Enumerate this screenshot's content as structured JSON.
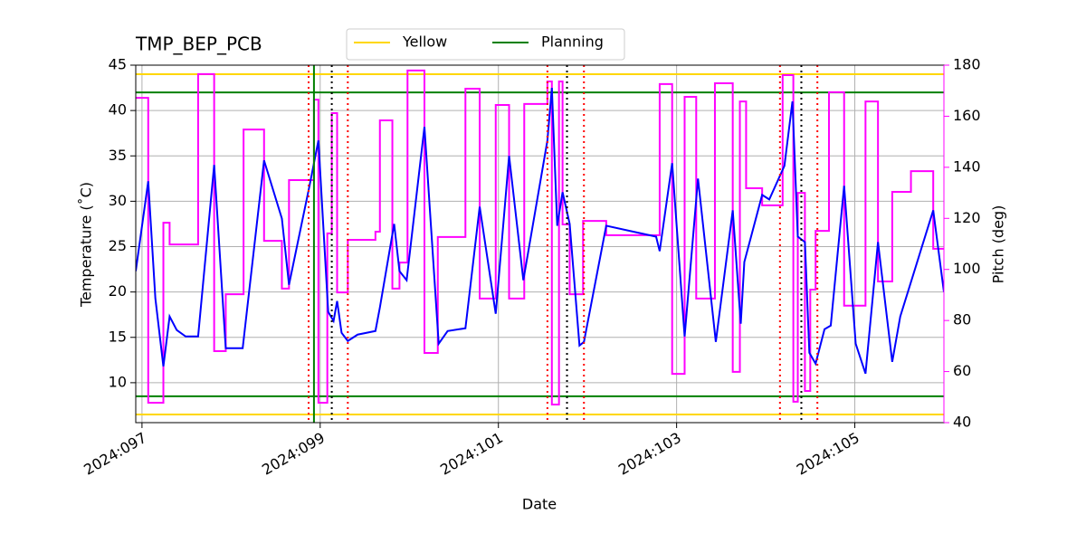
{
  "chart_data": {
    "type": "line",
    "title": "TMP_BEP_PCB",
    "xlabel": "Date",
    "ylabel": "Temperature (˚C)",
    "y2label": "Pitch (deg)",
    "y2label_color": "#ff00ff",
    "xlim": [
      96.93,
      106.0
    ],
    "xticks": [
      {
        "value": 97,
        "label": "2024:097"
      },
      {
        "value": 99,
        "label": "2024:099"
      },
      {
        "value": 101,
        "label": "2024:101"
      },
      {
        "value": 103,
        "label": "2024:103"
      },
      {
        "value": 105,
        "label": "2024:105"
      }
    ],
    "ylim": [
      5.6,
      45
    ],
    "yticks": [
      10,
      15,
      20,
      25,
      30,
      35,
      40,
      45
    ],
    "y2lim": [
      40,
      180
    ],
    "y2ticks": [
      40,
      60,
      80,
      100,
      120,
      140,
      160,
      180
    ],
    "grid": true,
    "legend": "upper center",
    "series": [
      {
        "color": "#0000ff",
        "axis": "y",
        "x": [
          96.93,
          97.07,
          97.15,
          97.24,
          97.31,
          97.39,
          97.49,
          97.63,
          97.81,
          97.94,
          98.13,
          98.37,
          98.57,
          98.65,
          98.88,
          98.98,
          99.09,
          99.15,
          99.19,
          99.24,
          99.31,
          99.42,
          99.62,
          99.67,
          99.83,
          99.89,
          99.97,
          100.17,
          100.33,
          100.43,
          100.63,
          100.79,
          100.97,
          101.12,
          101.28,
          101.55,
          101.6,
          101.66,
          101.72,
          101.8,
          101.91,
          101.96,
          102.21,
          102.77,
          102.81,
          102.95,
          103.09,
          103.24,
          103.44,
          103.63,
          103.72,
          103.76,
          103.96,
          104.04,
          104.21,
          104.3,
          104.36,
          104.44,
          104.49,
          104.56,
          104.66,
          104.73,
          104.88,
          105.01,
          105.12,
          105.26,
          105.42,
          105.51,
          105.88,
          106.0
        ],
        "values": [
          22.3,
          32.2,
          19.3,
          11.8,
          17.3,
          15.8,
          15.1,
          15.1,
          34.0,
          13.8,
          13.8,
          34.5,
          28.1,
          20.8,
          31.7,
          36.7,
          17.8,
          16.8,
          19.0,
          15.5,
          14.6,
          15.3,
          15.7,
          18.3,
          27.5,
          22.3,
          21.3,
          38.2,
          14.3,
          15.7,
          16.0,
          29.4,
          17.6,
          35.0,
          21.3,
          36.7,
          42.5,
          27.3,
          31.0,
          27.5,
          14.1,
          14.5,
          27.3,
          26.1,
          24.5,
          34.2,
          15.1,
          32.5,
          14.5,
          29.0,
          16.5,
          23.3,
          30.7,
          30.2,
          33.9,
          41.0,
          26.1,
          25.5,
          13.3,
          12.1,
          15.9,
          16.3,
          31.7,
          14.3,
          11.0,
          25.5,
          12.3,
          17.3,
          29.0,
          20.0
        ]
      },
      {
        "color": "#ff00ff",
        "axis": "y2",
        "drawstyle": "steps-post",
        "x": [
          96.93,
          97.07,
          97.24,
          97.31,
          97.63,
          97.81,
          97.94,
          98.14,
          98.37,
          98.57,
          98.65,
          98.93,
          98.98,
          99.08,
          99.13,
          99.19,
          99.31,
          99.62,
          99.67,
          99.81,
          99.89,
          99.98,
          100.17,
          100.32,
          100.63,
          100.79,
          100.97,
          101.12,
          101.29,
          101.55,
          101.6,
          101.68,
          101.72,
          101.8,
          101.95,
          102.21,
          102.81,
          102.95,
          103.09,
          103.22,
          103.43,
          103.63,
          103.71,
          103.78,
          103.96,
          104.19,
          104.31,
          104.36,
          104.44,
          104.5,
          104.56,
          104.71,
          104.88,
          105.12,
          105.26,
          105.42,
          105.63,
          105.88,
          106.0
        ],
        "values": [
          167.2,
          47.8,
          118.3,
          109.8,
          176.5,
          68.0,
          90.3,
          154.8,
          111.2,
          92.5,
          135.0,
          166.5,
          47.8,
          114.1,
          161.2,
          91.0,
          111.6,
          114.8,
          158.4,
          92.5,
          102.7,
          177.9,
          67.3,
          112.7,
          170.8,
          88.6,
          164.4,
          88.6,
          164.8,
          173.6,
          47.1,
          173.6,
          117.6,
          90.3,
          119.0,
          113.4,
          172.6,
          59.1,
          167.6,
          88.6,
          172.9,
          59.9,
          165.8,
          131.8,
          125.1,
          176.1,
          48.2,
          130.0,
          52.4,
          92.1,
          115.1,
          169.4,
          85.8,
          165.8,
          95.3,
          130.4,
          138.5,
          108.1,
          108.1
        ]
      }
    ],
    "limits": [
      {
        "name": "Yellow",
        "color": "#ffd700",
        "values": [
          44,
          6.5
        ]
      },
      {
        "name": "Planning",
        "color": "#008000",
        "values": [
          42,
          8.5
        ]
      }
    ],
    "vlines": [
      {
        "x": 98.87,
        "color": "#ff0000",
        "style": "dotted"
      },
      {
        "x": 98.93,
        "color": "#008000",
        "style": "solid"
      },
      {
        "x": 99.13,
        "color": "#000000",
        "style": "dotted"
      },
      {
        "x": 99.31,
        "color": "#ff0000",
        "style": "dotted"
      },
      {
        "x": 101.55,
        "color": "#ff0000",
        "style": "dotted"
      },
      {
        "x": 101.77,
        "color": "#000000",
        "style": "dotted"
      },
      {
        "x": 101.96,
        "color": "#ff0000",
        "style": "dotted"
      },
      {
        "x": 104.16,
        "color": "#ff0000",
        "style": "dotted"
      },
      {
        "x": 104.4,
        "color": "#000000",
        "style": "dotted"
      },
      {
        "x": 104.58,
        "color": "#ff0000",
        "style": "dotted"
      }
    ]
  }
}
